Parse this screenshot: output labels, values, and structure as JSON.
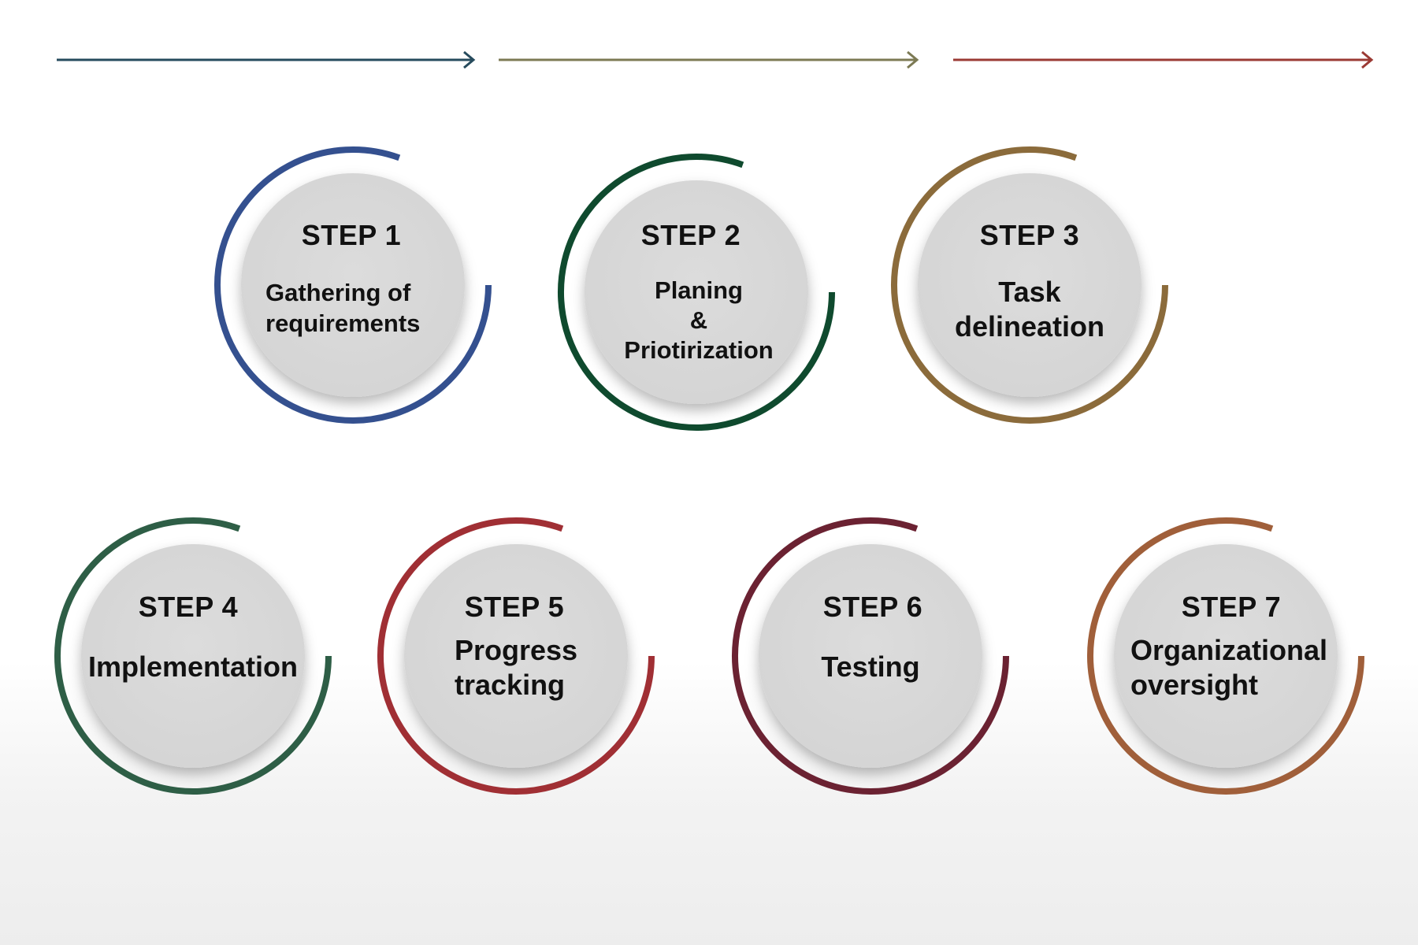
{
  "arrows": [
    {
      "color": "#264b5d"
    },
    {
      "color": "#7c7a54"
    },
    {
      "color": "#9b3a34"
    }
  ],
  "steps": [
    {
      "title": "STEP 1",
      "desc": "Gathering of\nrequirements",
      "color": "#34508f"
    },
    {
      "title": "STEP 2",
      "desc": "Planing\n&\nPriotirization",
      "color": "#0f4a2e"
    },
    {
      "title": "STEP 3",
      "desc": "Task\ndelineation",
      "color": "#8b6b3b"
    },
    {
      "title": "STEP 4",
      "desc": "Implementation",
      "color": "#2e5e46"
    },
    {
      "title": "STEP 5",
      "desc": "Progress\ntracking",
      "color": "#a02f34"
    },
    {
      "title": "STEP 6",
      "desc": "Testing",
      "color": "#6b2232"
    },
    {
      "title": "STEP 7",
      "desc": "Organizational\noversight",
      "color": "#a05f3a"
    }
  ]
}
